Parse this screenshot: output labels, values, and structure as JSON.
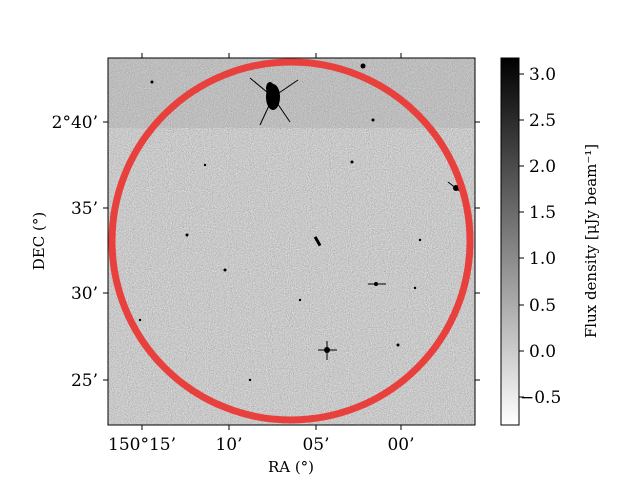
{
  "plot": {
    "xlabel": "RA (°)",
    "ylabel": "DEC (°)",
    "x_ticks": [
      "150°15’",
      "10’",
      "05’",
      "00’"
    ],
    "y_ticks": [
      "2°40’",
      "35’",
      "30’",
      "25’"
    ],
    "ring_color": "#e8413d"
  },
  "colorbar": {
    "label": "Flux density [μJy beam⁻¹]",
    "ticks": [
      "3.0",
      "2.5",
      "2.0",
      "1.5",
      "1.0",
      "0.5",
      "0.0",
      "−0.5"
    ],
    "range": [
      -0.8,
      3.2
    ],
    "colormap": "grayscale (white = low, black = high)"
  }
}
